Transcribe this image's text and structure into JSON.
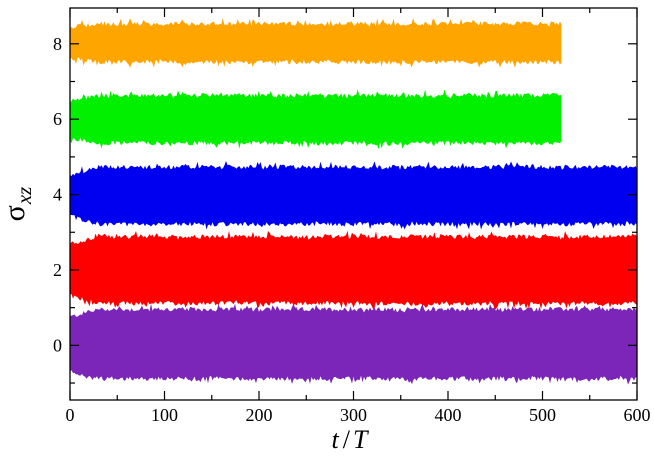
{
  "chart_data": {
    "type": "area",
    "title": "",
    "xlabel": "t / T",
    "xlabel_parts": {
      "var": "t",
      "sep": "/",
      "den": "T"
    },
    "ylabel": "σxz",
    "ylabel_parts": {
      "main": "σ",
      "sub": "xz"
    },
    "xlim": [
      0,
      600
    ],
    "ylim": [
      -1.45,
      8.95
    ],
    "xticks": [
      0,
      100,
      200,
      300,
      400,
      500,
      600
    ],
    "yticks": [
      0,
      2,
      4,
      6,
      8
    ],
    "grid": false,
    "legend": "none",
    "series": [
      {
        "color": "#7B26B8",
        "x_end": 600,
        "band_low": -0.85,
        "band_high": 0.92,
        "start_low": -0.65,
        "start_high": 0.72
      },
      {
        "color": "#FF0000",
        "x_end": 600,
        "band_low": 1.15,
        "band_high": 2.85,
        "start_low": 1.35,
        "start_high": 2.65
      },
      {
        "color": "#0000F0",
        "x_end": 600,
        "band_low": 3.25,
        "band_high": 4.7,
        "start_low": 3.45,
        "start_high": 4.5
      },
      {
        "color": "#00F000",
        "x_end": 520,
        "band_low": 5.4,
        "band_high": 6.6,
        "start_low": 5.55,
        "start_high": 6.45
      },
      {
        "color": "#FFA500",
        "x_end": 520,
        "band_low": 7.55,
        "band_high": 8.5,
        "start_low": 7.65,
        "start_high": 8.4
      }
    ]
  }
}
